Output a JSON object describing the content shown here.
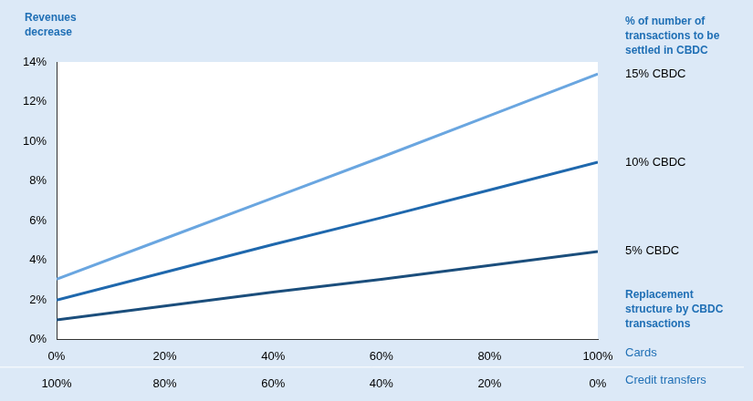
{
  "chart_data": {
    "type": "line",
    "ylabel": "Revenues decrease",
    "xlabel": "Cards",
    "x2label": "Credit transfers",
    "annotations": [
      "% of number of transactions to be settled in CBDC",
      "Replacement structure by CBDC transactions"
    ],
    "x": [
      0,
      20,
      40,
      60,
      80,
      100
    ],
    "series": [
      {
        "name": "15% CBDC",
        "color": "#6aa6e0",
        "values": [
          3.05,
          5.1,
          7.15,
          9.2,
          11.3,
          13.4
        ]
      },
      {
        "name": "10% CBDC",
        "color": "#1f68ad",
        "values": [
          2.0,
          3.4,
          4.8,
          6.15,
          7.55,
          8.95
        ]
      },
      {
        "name": "5% CBDC",
        "color": "#1b4e7c",
        "values": [
          1.0,
          1.7,
          2.4,
          3.05,
          3.75,
          4.45
        ]
      }
    ],
    "xlim": [
      0,
      100
    ],
    "xticks": [
      {
        "value": 0,
        "label": "0%"
      },
      {
        "value": 20,
        "label": "20%"
      },
      {
        "value": 40,
        "label": "40%"
      },
      {
        "value": 60,
        "label": "60%"
      },
      {
        "value": 80,
        "label": "80%"
      },
      {
        "value": 100,
        "label": "100%"
      }
    ],
    "x2lim": [
      100,
      0
    ],
    "x2ticks": [
      {
        "value": 100,
        "label": "100%"
      },
      {
        "value": 80,
        "label": "80%"
      },
      {
        "value": 60,
        "label": "60%"
      },
      {
        "value": 40,
        "label": "40%"
      },
      {
        "value": 20,
        "label": "20%"
      },
      {
        "value": 0,
        "label": "0%"
      }
    ],
    "ylim": [
      0,
      14
    ],
    "yticks": [
      {
        "value": 0,
        "label": "0%"
      },
      {
        "value": 2,
        "label": "2%"
      },
      {
        "value": 4,
        "label": "4%"
      },
      {
        "value": 6,
        "label": "6%"
      },
      {
        "value": 8,
        "label": "8%"
      },
      {
        "value": 10,
        "label": "10%"
      },
      {
        "value": 12,
        "label": "12%"
      },
      {
        "value": 14,
        "label": "14%"
      }
    ],
    "grid": false
  }
}
